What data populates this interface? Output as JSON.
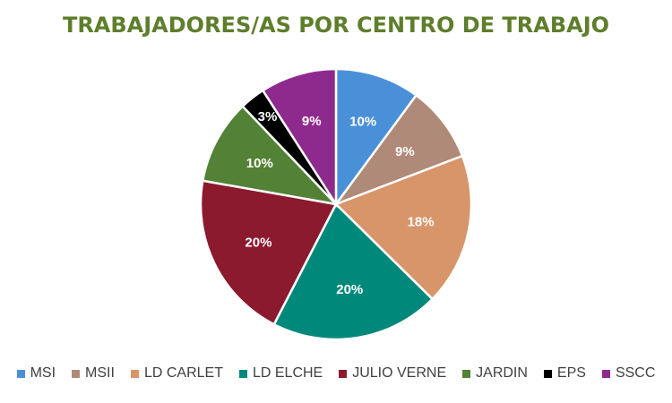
{
  "chart_data": {
    "type": "pie",
    "title": "TRABAJADORES/AS POR CENTRO DE TRABAJO",
    "categories": [
      "MSI",
      "MSII",
      "LD CARLET",
      "LD ELCHE",
      "JULIO VERNE",
      "JARDIN",
      "EPS",
      "SSCC"
    ],
    "values": [
      10,
      9,
      18,
      20,
      20,
      10,
      3,
      9
    ],
    "labels": [
      "10%",
      "9%",
      "18%",
      "20%",
      "20%",
      "10%",
      "3%",
      "9%"
    ],
    "colors": [
      "#4a90d9",
      "#b08a78",
      "#d8956a",
      "#00897b",
      "#8b1a2e",
      "#538135",
      "#000000",
      "#8e2a8e"
    ],
    "legend_position": "bottom",
    "start_angle": "top, clockwise"
  }
}
